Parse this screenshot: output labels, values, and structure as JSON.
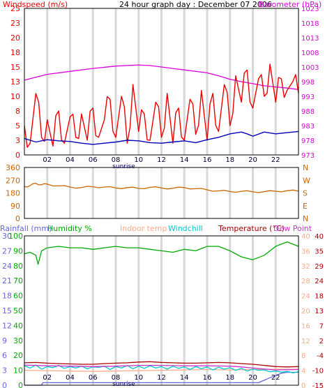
{
  "header": {
    "title": "24 hour graph day : December 07 2006",
    "windspeed_label": "Windspeed (m/s)",
    "barometer_label": "Barometer (hPa)"
  },
  "colors": {
    "wind_speed": "#ee0000",
    "wind_avg": "#0000bb",
    "barometer": "#dd00dd",
    "direction": "#cc6600",
    "rainfall": "#6666dd",
    "humidity": "#00aa00",
    "indoor_temp": "#ffaa88",
    "windchill": "#00cccc",
    "temperature": "#aa0000",
    "dew_point": "#cc33cc",
    "grid_band": "#d8d8d8",
    "panel_border": "#000000"
  },
  "x_ticks": [
    "02",
    "04",
    "06",
    "08",
    "10",
    "12",
    "14",
    "16",
    "18",
    "20",
    "22"
  ],
  "x_tick_hours": [
    2,
    4,
    6,
    8,
    10,
    12,
    14,
    16,
    18,
    20,
    22
  ],
  "sunrise_label": "sunrise",
  "sunrise_hour": 8.7,
  "chart_data": [
    {
      "type": "line",
      "title": "24 hour graph day : December 07 2006",
      "x_range": [
        0,
        24
      ],
      "grid": true,
      "y_left": {
        "label": "Windspeed (m/s)",
        "range": [
          0,
          25
        ],
        "ticks": [
          "0",
          "3",
          "5",
          "8",
          "10",
          "13",
          "15",
          "18",
          "20",
          "23",
          "25"
        ]
      },
      "y_right": {
        "label": "Barometer (hPa)",
        "range": [
          973,
          1023
        ],
        "ticks": [
          "973",
          "978",
          "983",
          "988",
          "993",
          "998",
          "1003",
          "1008",
          "1013",
          "1018",
          "1023"
        ]
      },
      "series": [
        {
          "axis": "right",
          "x": [
            0,
            2,
            4,
            6,
            8,
            10,
            11,
            12,
            14,
            16,
            17,
            18,
            19,
            20,
            21,
            22,
            23,
            24
          ],
          "y": [
            998.5,
            1000.5,
            1001.5,
            1002.5,
            1003.3,
            1003.7,
            1003.5,
            1003.0,
            1002.0,
            1001.0,
            1000.0,
            998.8,
            998.0,
            997.3,
            996.6,
            996.2,
            995.8,
            995.3
          ]
        },
        {
          "axis": "left",
          "x": [
            0,
            1,
            2,
            3,
            4,
            5,
            6,
            7,
            8,
            9,
            10,
            11,
            12,
            13,
            14,
            15,
            16,
            17,
            18,
            19,
            19.5,
            20,
            21,
            22,
            23,
            24
          ],
          "y": [
            2.8,
            2.2,
            2.6,
            2.4,
            2.3,
            2.0,
            1.8,
            2.0,
            2.2,
            2.5,
            2.4,
            2.1,
            2.0,
            2.2,
            2.4,
            2.1,
            2.6,
            3.0,
            3.6,
            3.9,
            3.6,
            3.2,
            3.9,
            3.6,
            3.8,
            4.0
          ]
        },
        {
          "axis": "left",
          "x": [
            0,
            0.5,
            1,
            1.5,
            2,
            2.5,
            3,
            3.5,
            4,
            4.5,
            5,
            5.5,
            6,
            6.5,
            7,
            7.5,
            8,
            8.5,
            9,
            9.5,
            10,
            10.5,
            11,
            11.5,
            12,
            12.5,
            13,
            13.5,
            14,
            14.5,
            15,
            15.5,
            16,
            16.5,
            17,
            17.5,
            18,
            18.5,
            19,
            19.5,
            20,
            20.5,
            21,
            21.5,
            22,
            22.5,
            23,
            23.5,
            24
          ],
          "y": [
            5,
            2,
            10.5,
            3,
            6,
            1.5,
            7.5,
            2,
            6.5,
            3,
            7,
            2.5,
            8,
            3,
            6,
            9.5,
            3,
            10,
            2,
            12,
            4,
            7,
            2.5,
            9,
            3,
            10.5,
            2,
            8,
            2.5,
            9.5,
            3.5,
            11,
            2.5,
            10.5,
            4,
            12,
            5,
            13.5,
            9,
            14.5,
            8,
            13,
            10,
            15.5,
            9,
            13,
            11,
            12.5,
            10.5
          ]
        }
      ]
    },
    {
      "type": "line",
      "x_range": [
        0,
        24
      ],
      "grid": true,
      "y_left": {
        "range": [
          0,
          360
        ],
        "ticks": [
          "0",
          "90",
          "180",
          "270",
          "360"
        ]
      },
      "y_right": {
        "ticks": [
          "N",
          "W",
          "S",
          "E",
          "N"
        ]
      },
      "series": [
        {
          "x": [
            0,
            0.5,
            1,
            1.5,
            2,
            3,
            4,
            5,
            6,
            7,
            8,
            9,
            10,
            11,
            12,
            13,
            14,
            15,
            16,
            17,
            18,
            19,
            20,
            21,
            22,
            23,
            24
          ],
          "y": [
            225,
            232,
            248,
            238,
            242,
            230,
            222,
            218,
            224,
            222,
            215,
            218,
            212,
            220,
            215,
            213,
            218,
            210,
            202,
            195,
            190,
            192,
            188,
            189,
            192,
            196,
            193
          ]
        }
      ]
    },
    {
      "type": "line",
      "x_range": [
        0,
        24
      ],
      "grid": true,
      "legend": [
        "Rainfall (mm)",
        "Humidity %",
        "Indoor temp",
        "Windchill",
        "Temperature (°C)",
        "Dew Point"
      ],
      "y_left_outer": {
        "label": "Rainfall (mm)",
        "range": [
          0,
          30
        ],
        "ticks": [
          "0",
          "3",
          "6",
          "9",
          "12",
          "15",
          "18",
          "21",
          "24",
          "27",
          "30"
        ]
      },
      "y_left_inner": {
        "label": "Humidity %",
        "range": [
          0,
          100
        ],
        "ticks": [
          "0",
          "10",
          "20",
          "30",
          "40",
          "50",
          "60",
          "70",
          "80",
          "90",
          "100"
        ]
      },
      "y_right_inner": {
        "label": "Temperature (°C)",
        "range": [
          0,
          40
        ],
        "ticks": [
          "0",
          "4",
          "8",
          "12",
          "16",
          "20",
          "24",
          "28",
          "32",
          "36",
          "40"
        ]
      },
      "y_right_outer": {
        "label": "Dew Point",
        "range": [
          -15,
          40
        ],
        "ticks": [
          "-15",
          "-10",
          "-4",
          "2",
          "7",
          "13",
          "18",
          "24",
          "29",
          "35",
          "40"
        ]
      },
      "series": [
        {
          "name": "Humidity %",
          "axis": "humidity",
          "x": [
            0,
            0.5,
            1,
            1.2,
            1.5,
            2,
            3,
            4,
            5,
            6,
            7,
            8,
            9,
            10,
            11,
            12,
            13,
            14,
            15,
            16,
            17,
            18,
            19,
            20,
            21,
            22,
            23,
            24
          ],
          "y": [
            88,
            89,
            87,
            81,
            90,
            92,
            93,
            92,
            92,
            91,
            92,
            93,
            92,
            92,
            91,
            90,
            89,
            91,
            90,
            93,
            93,
            90,
            86,
            84,
            87,
            93,
            96,
            93
          ]
        },
        {
          "name": "Temperature (°C)",
          "axis": "temp",
          "x": [
            0,
            1,
            2,
            3,
            4,
            5,
            6,
            7,
            8,
            9,
            10,
            11,
            12,
            13,
            14,
            15,
            16,
            17,
            18,
            19,
            20,
            21,
            22,
            23,
            24
          ],
          "y": [
            6.0,
            6.1,
            5.9,
            5.8,
            5.7,
            5.6,
            5.6,
            5.8,
            5.9,
            6.0,
            6.2,
            6.3,
            6.1,
            6.0,
            5.9,
            5.9,
            6.0,
            6.1,
            6.0,
            5.8,
            5.6,
            5.3,
            5.0,
            4.9,
            5.0
          ]
        },
        {
          "name": "Dew Point",
          "axis": "temp",
          "x": [
            0,
            2,
            4,
            6,
            8,
            10,
            12,
            14,
            16,
            18,
            19,
            20,
            22,
            24
          ],
          "y": [
            5.4,
            5.2,
            5.1,
            5.0,
            5.1,
            5.3,
            5.3,
            5.2,
            5.2,
            5.1,
            4.9,
            4.6,
            4.1,
            4.2
          ]
        },
        {
          "name": "Indoor temp",
          "axis": "temp",
          "x": [
            0,
            2,
            4,
            6,
            8,
            10,
            12,
            14,
            16,
            18,
            20,
            22,
            24
          ],
          "y": [
            4.0,
            3.9,
            3.8,
            3.7,
            3.8,
            3.9,
            4.0,
            4.1,
            4.2,
            4.1,
            4.2,
            4.3,
            4.3
          ]
        },
        {
          "name": "Windchill",
          "axis": "temp",
          "x": [
            0,
            0.5,
            1,
            1.5,
            2,
            2.5,
            3,
            3.5,
            4,
            4.5,
            5,
            5.5,
            6,
            6.5,
            7,
            7.5,
            8,
            8.5,
            9,
            9.5,
            10,
            10.5,
            11,
            11.5,
            12,
            12.5,
            13,
            13.5,
            14,
            14.5,
            15,
            15.5,
            16,
            16.5,
            17,
            17.5,
            18,
            18.5,
            19,
            19.5,
            20,
            20.5,
            21,
            21.5,
            22,
            22.5,
            23,
            23.5,
            24
          ],
          "y": [
            5.2,
            4.6,
            5.4,
            4.3,
            5.0,
            4.7,
            5.3,
            4.5,
            5.0,
            4.6,
            5.1,
            4.4,
            4.9,
            4.8,
            5.1,
            4.2,
            5.0,
            4.6,
            5.3,
            4.4,
            5.1,
            4.5,
            5.2,
            4.6,
            5.0,
            4.3,
            5.1,
            4.5,
            4.9,
            4.2,
            5.0,
            4.4,
            4.9,
            4.1,
            4.8,
            4.3,
            4.7,
            4.0,
            4.5,
            3.8,
            4.3,
            4.0,
            4.1,
            3.6,
            3.8,
            3.5,
            3.7,
            3.3,
            3.6
          ]
        },
        {
          "name": "Rainfall (mm)",
          "axis": "rain",
          "x": [
            0,
            1.5,
            1.6,
            20.5,
            21.5,
            22.5,
            23,
            24
          ],
          "y": [
            0,
            0,
            0.5,
            0.5,
            1.5,
            2.4,
            2.6,
            2.6
          ]
        }
      ]
    }
  ]
}
